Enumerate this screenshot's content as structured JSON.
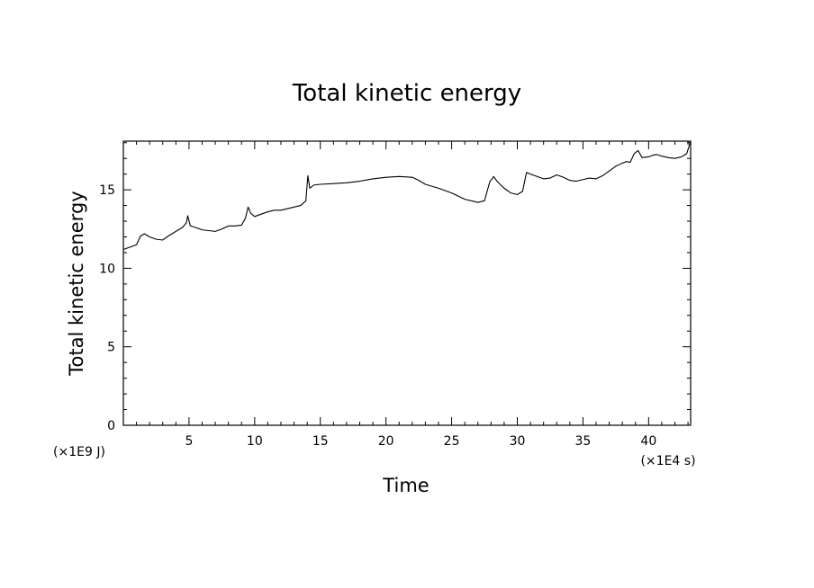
{
  "chart_data": {
    "type": "line",
    "title": "Total kinetic energy",
    "xlabel": "Time",
    "ylabel": "Total kinetic energy",
    "x_unit": "(×1E4 s)",
    "y_unit": "(×1E9 J)",
    "xlim": [
      0,
      43.2
    ],
    "ylim": [
      0,
      18.1
    ],
    "x_ticks": [
      5,
      10,
      15,
      20,
      25,
      30,
      35,
      40
    ],
    "y_ticks": [
      0,
      5,
      10,
      15
    ],
    "x_minor_step": 1,
    "y_minor_step": 1,
    "grid": false,
    "series": [
      {
        "x": [
          0,
          0.5,
          1.0,
          1.3,
          1.6,
          2.0,
          2.5,
          3.0,
          3.5,
          4.0,
          4.5,
          4.8,
          4.9,
          5.1,
          5.5,
          6.0,
          6.5,
          7.0,
          7.5,
          8.0,
          8.5,
          9.0,
          9.3,
          9.5,
          9.7,
          10.0,
          10.5,
          11.0,
          11.5,
          12.0,
          12.5,
          13.0,
          13.5,
          13.9,
          14.05,
          14.2,
          14.5,
          15.0,
          16.0,
          17.0,
          18.0,
          19.0,
          20.0,
          21.0,
          22.0,
          22.5,
          23.0,
          24.0,
          25.0,
          25.5,
          26.0,
          27.0,
          27.5,
          27.9,
          28.2,
          28.5,
          29.0,
          29.5,
          30.0,
          30.4,
          30.7,
          31.0,
          31.5,
          32.0,
          32.5,
          33.0,
          33.5,
          34.0,
          34.5,
          35.0,
          35.5,
          36.0,
          36.5,
          37.0,
          37.5,
          38.0,
          38.3,
          38.6,
          38.9,
          39.2,
          39.5,
          40.0,
          40.3,
          40.6,
          41.0,
          41.5,
          42.0,
          42.5,
          42.9,
          43.2
        ],
        "y": [
          11.2,
          11.35,
          11.5,
          12.05,
          12.2,
          12.0,
          11.85,
          11.8,
          12.1,
          12.35,
          12.6,
          12.9,
          13.35,
          12.7,
          12.6,
          12.45,
          12.4,
          12.35,
          12.5,
          12.7,
          12.7,
          12.75,
          13.2,
          13.9,
          13.5,
          13.3,
          13.45,
          13.6,
          13.7,
          13.7,
          13.8,
          13.9,
          14.0,
          14.3,
          15.9,
          15.1,
          15.3,
          15.35,
          15.4,
          15.45,
          15.55,
          15.7,
          15.8,
          15.85,
          15.8,
          15.6,
          15.35,
          15.1,
          14.8,
          14.6,
          14.4,
          14.2,
          14.3,
          15.5,
          15.85,
          15.5,
          15.1,
          14.8,
          14.7,
          14.9,
          16.1,
          16.0,
          15.85,
          15.7,
          15.75,
          15.95,
          15.8,
          15.6,
          15.55,
          15.65,
          15.75,
          15.7,
          15.9,
          16.2,
          16.5,
          16.7,
          16.8,
          16.75,
          17.3,
          17.5,
          17.05,
          17.1,
          17.2,
          17.25,
          17.15,
          17.05,
          17.0,
          17.1,
          17.3,
          18.1
        ]
      }
    ]
  }
}
